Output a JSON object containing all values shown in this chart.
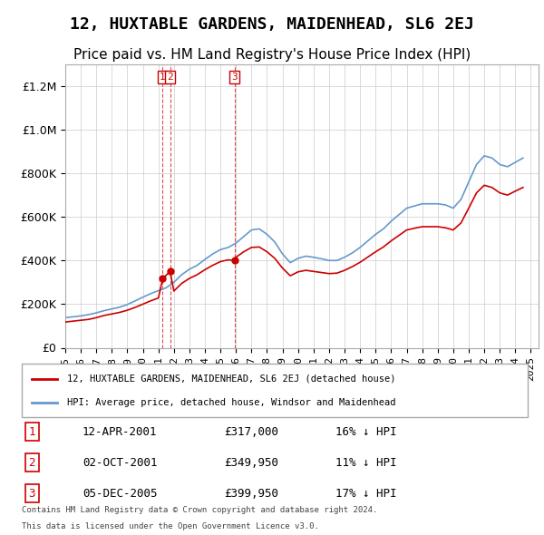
{
  "title": "12, HUXTABLE GARDENS, MAIDENHEAD, SL6 2EJ",
  "subtitle": "Price paid vs. HM Land Registry's House Price Index (HPI)",
  "title_fontsize": 13,
  "subtitle_fontsize": 11,
  "background_color": "#ffffff",
  "plot_bg_color": "#ffffff",
  "grid_color": "#cccccc",
  "red_line_color": "#cc0000",
  "blue_line_color": "#6699cc",
  "transactions": [
    {
      "num": 1,
      "date": "12-APR-2001",
      "price": 317000,
      "pct": "16%",
      "dir": "↓",
      "x_year": 2001.28
    },
    {
      "num": 2,
      "date": "02-OCT-2001",
      "price": 349950,
      "pct": "11%",
      "dir": "↓",
      "x_year": 2001.75
    },
    {
      "num": 3,
      "date": "05-DEC-2005",
      "price": 399950,
      "pct": "17%",
      "dir": "↓",
      "x_year": 2005.92
    }
  ],
  "legend_label_red": "12, HUXTABLE GARDENS, MAIDENHEAD, SL6 2EJ (detached house)",
  "legend_label_blue": "HPI: Average price, detached house, Windsor and Maidenhead",
  "footer_line1": "Contains HM Land Registry data © Crown copyright and database right 2024.",
  "footer_line2": "This data is licensed under the Open Government Licence v3.0.",
  "ylim": [
    0,
    1300000
  ],
  "yticks": [
    0,
    200000,
    400000,
    600000,
    800000,
    1000000,
    1200000
  ],
  "xlim_start": 1995,
  "xlim_end": 2025.5,
  "hpi_years": [
    1995.0,
    1995.5,
    1996.0,
    1996.5,
    1997.0,
    1997.5,
    1998.0,
    1998.5,
    1999.0,
    1999.5,
    2000.0,
    2000.5,
    2001.0,
    2001.5,
    2002.0,
    2002.5,
    2003.0,
    2003.5,
    2004.0,
    2004.5,
    2005.0,
    2005.5,
    2006.0,
    2006.5,
    2007.0,
    2007.5,
    2008.0,
    2008.5,
    2009.0,
    2009.5,
    2010.0,
    2010.5,
    2011.0,
    2011.5,
    2012.0,
    2012.5,
    2013.0,
    2013.5,
    2014.0,
    2014.5,
    2015.0,
    2015.5,
    2016.0,
    2016.5,
    2017.0,
    2017.5,
    2018.0,
    2018.5,
    2019.0,
    2019.5,
    2020.0,
    2020.5,
    2021.0,
    2021.5,
    2022.0,
    2022.5,
    2023.0,
    2023.5,
    2024.0,
    2024.5
  ],
  "hpi_values": [
    138000,
    142000,
    146000,
    152000,
    160000,
    170000,
    178000,
    186000,
    198000,
    215000,
    232000,
    248000,
    262000,
    275000,
    300000,
    335000,
    360000,
    378000,
    405000,
    430000,
    450000,
    460000,
    480000,
    510000,
    540000,
    545000,
    520000,
    485000,
    430000,
    390000,
    410000,
    420000,
    415000,
    408000,
    400000,
    400000,
    415000,
    435000,
    460000,
    490000,
    520000,
    545000,
    580000,
    610000,
    640000,
    650000,
    660000,
    660000,
    660000,
    655000,
    640000,
    680000,
    760000,
    840000,
    880000,
    870000,
    840000,
    830000,
    850000,
    870000
  ],
  "red_years": [
    1995.0,
    1995.5,
    1996.0,
    1996.5,
    1997.0,
    1997.5,
    1998.0,
    1998.5,
    1999.0,
    1999.5,
    2000.0,
    2000.5,
    2001.0,
    2001.28,
    2001.75,
    2002.0,
    2002.5,
    2003.0,
    2003.5,
    2004.0,
    2004.5,
    2005.0,
    2005.5,
    2005.92,
    2006.0,
    2006.5,
    2007.0,
    2007.5,
    2008.0,
    2008.5,
    2009.0,
    2009.5,
    2010.0,
    2010.5,
    2011.0,
    2011.5,
    2012.0,
    2012.5,
    2013.0,
    2013.5,
    2014.0,
    2014.5,
    2015.0,
    2015.5,
    2016.0,
    2016.5,
    2017.0,
    2017.5,
    2018.0,
    2018.5,
    2019.0,
    2019.5,
    2020.0,
    2020.5,
    2021.0,
    2021.5,
    2022.0,
    2022.5,
    2023.0,
    2023.5,
    2024.0,
    2024.5
  ],
  "red_values": [
    118000,
    122000,
    126000,
    130000,
    138000,
    148000,
    155000,
    162000,
    172000,
    185000,
    200000,
    215000,
    228000,
    317000,
    349950,
    260000,
    295000,
    318000,
    335000,
    358000,
    378000,
    395000,
    403000,
    399950,
    415000,
    440000,
    460000,
    462000,
    440000,
    410000,
    365000,
    330000,
    348000,
    355000,
    350000,
    345000,
    340000,
    342000,
    355000,
    372000,
    392000,
    416000,
    440000,
    462000,
    490000,
    515000,
    540000,
    548000,
    555000,
    555000,
    555000,
    550000,
    540000,
    572000,
    640000,
    710000,
    745000,
    735000,
    710000,
    700000,
    718000,
    735000
  ]
}
